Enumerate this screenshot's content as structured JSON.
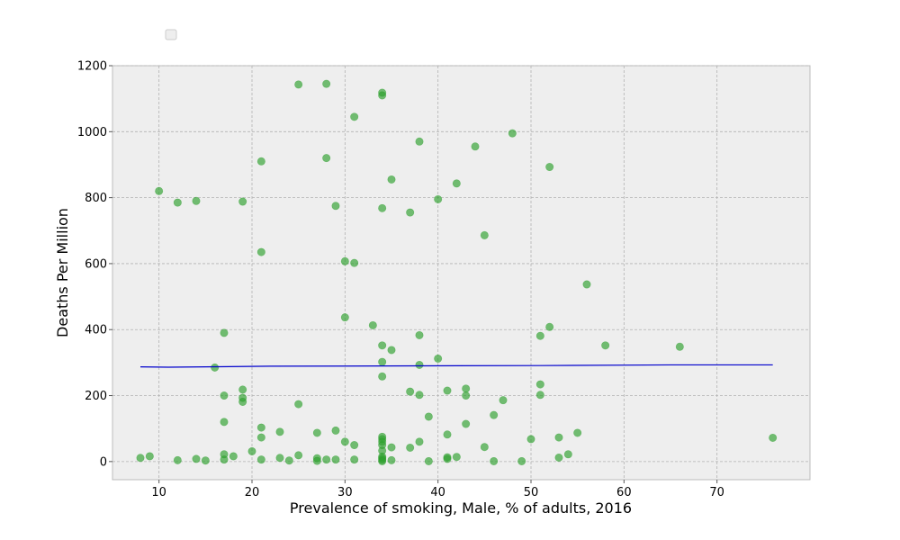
{
  "chart_data": {
    "type": "scatter",
    "xlabel": "Prevalence of smoking, Male, % of adults, 2016",
    "ylabel": "Deaths Per Million",
    "xlim": [
      5,
      80
    ],
    "ylim": [
      -55,
      1200
    ],
    "xticks": [
      10,
      20,
      30,
      40,
      50,
      60,
      70
    ],
    "yticks": [
      0,
      200,
      400,
      600,
      800,
      1000,
      1200
    ],
    "grid": true,
    "legend": "empty, top-left",
    "colors": {
      "points": "#2ca02c",
      "trend": "#0000cc",
      "background": "#eeeeee"
    },
    "series": [
      {
        "kind": "scatter",
        "points": [
          [
            10,
            820
          ],
          [
            12,
            785
          ],
          [
            14,
            790
          ],
          [
            19,
            788
          ],
          [
            21,
            910
          ],
          [
            21,
            635
          ],
          [
            25,
            1143
          ],
          [
            28,
            1145
          ],
          [
            28,
            920
          ],
          [
            29,
            775
          ],
          [
            30,
            607
          ],
          [
            31,
            1045
          ],
          [
            31,
            602
          ],
          [
            34,
            1118
          ],
          [
            34,
            1110
          ],
          [
            34,
            768
          ],
          [
            35,
            855
          ],
          [
            37,
            755
          ],
          [
            38,
            970
          ],
          [
            40,
            795
          ],
          [
            42,
            843
          ],
          [
            44,
            955
          ],
          [
            45,
            686
          ],
          [
            48,
            995
          ],
          [
            52,
            893
          ],
          [
            56,
            537
          ],
          [
            17,
            390
          ],
          [
            30,
            437
          ],
          [
            33,
            413
          ],
          [
            34,
            352
          ],
          [
            34,
            302
          ],
          [
            34,
            258
          ],
          [
            35,
            338
          ],
          [
            38,
            383
          ],
          [
            38,
            293
          ],
          [
            40,
            312
          ],
          [
            51,
            381
          ],
          [
            52,
            408
          ],
          [
            58,
            352
          ],
          [
            66,
            348
          ],
          [
            16,
            285
          ],
          [
            17,
            200
          ],
          [
            17,
            120
          ],
          [
            19,
            218
          ],
          [
            19,
            193
          ],
          [
            19,
            181
          ],
          [
            25,
            174
          ],
          [
            37,
            212
          ],
          [
            38,
            202
          ],
          [
            39,
            136
          ],
          [
            41,
            215
          ],
          [
            43,
            221
          ],
          [
            43,
            200
          ],
          [
            43,
            114
          ],
          [
            46,
            141
          ],
          [
            47,
            186
          ],
          [
            51,
            234
          ],
          [
            51,
            202
          ],
          [
            8,
            11
          ],
          [
            9,
            16
          ],
          [
            12,
            4
          ],
          [
            14,
            8
          ],
          [
            15,
            3
          ],
          [
            17,
            22
          ],
          [
            17,
            6
          ],
          [
            18,
            16
          ],
          [
            20,
            31
          ],
          [
            21,
            103
          ],
          [
            21,
            73
          ],
          [
            21,
            6
          ],
          [
            23,
            90
          ],
          [
            23,
            11
          ],
          [
            24,
            3
          ],
          [
            25,
            19
          ],
          [
            27,
            87
          ],
          [
            27,
            10
          ],
          [
            27,
            2
          ],
          [
            28,
            6
          ],
          [
            29,
            94
          ],
          [
            29,
            6
          ],
          [
            30,
            60
          ],
          [
            31,
            50
          ],
          [
            31,
            6
          ],
          [
            34,
            75
          ],
          [
            34,
            68
          ],
          [
            34,
            60
          ],
          [
            34,
            50
          ],
          [
            34,
            33
          ],
          [
            34,
            15
          ],
          [
            34,
            10
          ],
          [
            34,
            5
          ],
          [
            34,
            1
          ],
          [
            35,
            43
          ],
          [
            35,
            4
          ],
          [
            37,
            42
          ],
          [
            38,
            60
          ],
          [
            39,
            1
          ],
          [
            41,
            82
          ],
          [
            41,
            13
          ],
          [
            41,
            8
          ],
          [
            42,
            14
          ],
          [
            45,
            44
          ],
          [
            46,
            1
          ],
          [
            49,
            1
          ],
          [
            50,
            68
          ],
          [
            53,
            73
          ],
          [
            53,
            12
          ],
          [
            54,
            22
          ],
          [
            55,
            87
          ],
          [
            76,
            72
          ]
        ]
      },
      {
        "kind": "line",
        "points": [
          [
            8,
            287
          ],
          [
            11,
            286
          ],
          [
            22,
            289
          ],
          [
            51,
            291
          ],
          [
            65,
            293
          ],
          [
            76,
            293
          ]
        ]
      }
    ]
  }
}
